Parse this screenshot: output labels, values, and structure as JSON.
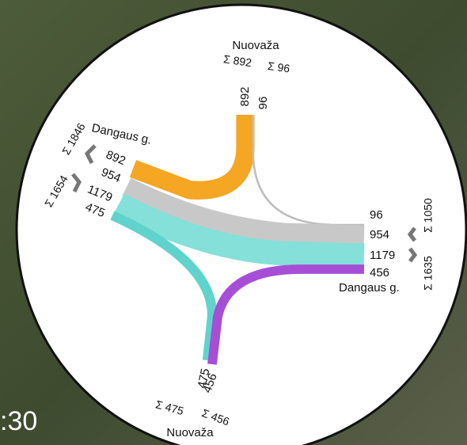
{
  "roads": {
    "top": {
      "name": "Nuovaža",
      "sum_in": "Σ 892",
      "sum_out": "Σ 96"
    },
    "left": {
      "name": "Dangaus g.",
      "sum_in": "Σ 1846",
      "sum_out": "Σ 1654"
    },
    "right": {
      "name": "Dangaus g.",
      "sum_in": "Σ 1050",
      "sum_out": "Σ 1635"
    },
    "bottom": {
      "name": "Nuovaža",
      "sum_in": "Σ 475",
      "sum_out": "Σ 456"
    }
  },
  "flows": [
    {
      "value": 892,
      "color": "#f5a623"
    },
    {
      "value": 96,
      "color": "#bdbdbd"
    },
    {
      "value": 954,
      "color": "#c8c8c8"
    },
    {
      "value": 1179,
      "color": "#84e0d8"
    },
    {
      "value": 475,
      "color": "#5fd3cc"
    },
    {
      "value": 456,
      "color": "#a64fd6"
    }
  ],
  "time_label": ":30"
}
